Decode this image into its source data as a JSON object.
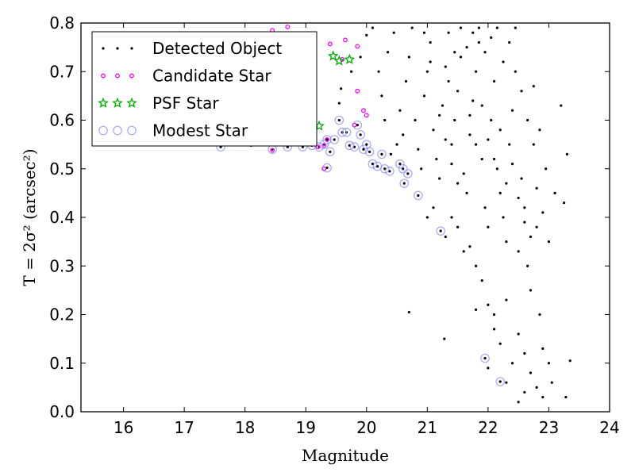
{
  "chart_data": {
    "type": "scatter",
    "xlabel": "Magnitude",
    "ylabel": "T = 2σ² (arcsec²)",
    "xlim": [
      15.3,
      24.0
    ],
    "ylim": [
      0.0,
      0.8
    ],
    "xticks": [
      16,
      17,
      18,
      19,
      20,
      21,
      22,
      23,
      24
    ],
    "yticks": [
      0.0,
      0.1,
      0.2,
      0.3,
      0.4,
      0.5,
      0.6,
      0.7,
      0.8
    ],
    "xtick_labels": [
      "16",
      "17",
      "18",
      "19",
      "20",
      "21",
      "22",
      "23",
      "24"
    ],
    "ytick_labels": [
      "0.0",
      "0.1",
      "0.2",
      "0.3",
      "0.4",
      "0.5",
      "0.6",
      "0.7",
      "0.8"
    ],
    "grid": false,
    "legend_position": "top-left",
    "series": [
      {
        "name": "Detected Object",
        "marker": "dot",
        "color": "#000000",
        "points": [
          [
            17.6,
            0.545
          ],
          [
            18.1,
            0.548
          ],
          [
            18.45,
            0.54
          ],
          [
            18.7,
            0.545
          ],
          [
            18.95,
            0.545
          ],
          [
            19.1,
            0.548
          ],
          [
            19.22,
            0.545
          ],
          [
            19.3,
            0.55
          ],
          [
            19.35,
            0.56
          ],
          [
            19.4,
            0.535
          ],
          [
            19.47,
            0.56
          ],
          [
            19.55,
            0.6
          ],
          [
            19.6,
            0.575
          ],
          [
            19.67,
            0.575
          ],
          [
            19.72,
            0.548
          ],
          [
            19.8,
            0.545
          ],
          [
            19.85,
            0.59
          ],
          [
            19.9,
            0.57
          ],
          [
            19.95,
            0.54
          ],
          [
            20.0,
            0.55
          ],
          [
            20.05,
            0.535
          ],
          [
            20.1,
            0.51
          ],
          [
            20.18,
            0.505
          ],
          [
            20.25,
            0.53
          ],
          [
            20.3,
            0.5
          ],
          [
            20.38,
            0.495
          ],
          [
            20.4,
            0.53
          ],
          [
            20.55,
            0.51
          ],
          [
            20.6,
            0.5
          ],
          [
            20.62,
            0.47
          ],
          [
            20.68,
            0.49
          ],
          [
            20.85,
            0.445
          ],
          [
            20.7,
            0.205
          ],
          [
            21.22,
            0.372
          ],
          [
            21.28,
            0.15
          ],
          [
            21.95,
            0.11
          ],
          [
            22.2,
            0.062
          ],
          [
            19.35,
            0.502
          ],
          [
            19.55,
            0.635
          ],
          [
            19.58,
            0.665
          ],
          [
            19.75,
            0.7
          ],
          [
            19.9,
            0.73
          ],
          [
            20.0,
            0.775
          ],
          [
            20.1,
            0.79
          ],
          [
            20.2,
            0.7
          ],
          [
            20.25,
            0.65
          ],
          [
            20.3,
            0.6
          ],
          [
            20.35,
            0.74
          ],
          [
            20.45,
            0.78
          ],
          [
            20.5,
            0.55
          ],
          [
            20.55,
            0.62
          ],
          [
            20.6,
            0.57
          ],
          [
            20.65,
            0.68
          ],
          [
            20.7,
            0.73
          ],
          [
            20.75,
            0.79
          ],
          [
            20.8,
            0.6
          ],
          [
            20.85,
            0.54
          ],
          [
            20.9,
            0.5
          ],
          [
            20.95,
            0.65
          ],
          [
            21.0,
            0.7
          ],
          [
            21.05,
            0.76
          ],
          [
            21.1,
            0.58
          ],
          [
            21.15,
            0.52
          ],
          [
            21.2,
            0.48
          ],
          [
            21.25,
            0.63
          ],
          [
            21.3,
            0.71
          ],
          [
            21.35,
            0.78
          ],
          [
            21.4,
            0.55
          ],
          [
            21.45,
            0.6
          ],
          [
            21.5,
            0.66
          ],
          [
            21.55,
            0.73
          ],
          [
            21.6,
            0.49
          ],
          [
            21.65,
            0.45
          ],
          [
            21.7,
            0.57
          ],
          [
            21.75,
            0.64
          ],
          [
            21.8,
            0.7
          ],
          [
            21.85,
            0.76
          ],
          [
            21.9,
            0.52
          ],
          [
            21.95,
            0.42
          ],
          [
            22.0,
            0.38
          ],
          [
            22.05,
            0.6
          ],
          [
            22.1,
            0.68
          ],
          [
            22.15,
            0.5
          ],
          [
            22.2,
            0.45
          ],
          [
            22.25,
            0.4
          ],
          [
            22.3,
            0.35
          ],
          [
            22.35,
            0.55
          ],
          [
            22.4,
            0.62
          ],
          [
            22.45,
            0.7
          ],
          [
            22.5,
            0.33
          ],
          [
            22.55,
            0.48
          ],
          [
            22.6,
            0.42
          ],
          [
            22.65,
            0.3
          ],
          [
            22.7,
            0.25
          ],
          [
            22.75,
            0.55
          ],
          [
            22.8,
            0.38
          ],
          [
            22.85,
            0.2
          ],
          [
            22.9,
            0.13
          ],
          [
            22.95,
            0.5
          ],
          [
            23.0,
            0.1
          ],
          [
            23.05,
            0.06
          ],
          [
            23.1,
            0.45
          ],
          [
            23.2,
            0.63
          ],
          [
            23.25,
            0.43
          ],
          [
            23.3,
            0.53
          ],
          [
            23.35,
            0.105
          ],
          [
            23.28,
            0.03
          ],
          [
            21.0,
            0.4
          ],
          [
            21.1,
            0.42
          ],
          [
            21.3,
            0.36
          ],
          [
            21.4,
            0.4
          ],
          [
            21.5,
            0.38
          ],
          [
            21.6,
            0.33
          ],
          [
            21.7,
            0.34
          ],
          [
            21.8,
            0.3
          ],
          [
            21.9,
            0.27
          ],
          [
            22.0,
            0.22
          ],
          [
            22.1,
            0.2
          ],
          [
            22.1,
            0.17
          ],
          [
            22.2,
            0.14
          ],
          [
            22.3,
            0.23
          ],
          [
            22.4,
            0.1
          ],
          [
            22.5,
            0.16
          ],
          [
            22.6,
            0.12
          ],
          [
            22.7,
            0.08
          ],
          [
            22.8,
            0.05
          ],
          [
            22.6,
            0.04
          ],
          [
            22.5,
            0.02
          ],
          [
            22.9,
            0.03
          ],
          [
            22.3,
            0.06
          ],
          [
            22.0,
            0.09
          ],
          [
            21.8,
            0.21
          ],
          [
            20.95,
            0.78
          ],
          [
            21.05,
            0.72
          ],
          [
            21.35,
            0.68
          ],
          [
            21.45,
            0.74
          ],
          [
            21.55,
            0.79
          ],
          [
            21.65,
            0.75
          ],
          [
            21.75,
            0.78
          ],
          [
            21.85,
            0.79
          ],
          [
            21.95,
            0.74
          ],
          [
            22.05,
            0.77
          ],
          [
            22.15,
            0.79
          ],
          [
            22.25,
            0.72
          ],
          [
            22.35,
            0.76
          ],
          [
            22.45,
            0.79
          ],
          [
            22.55,
            0.66
          ],
          [
            22.65,
            0.6
          ],
          [
            22.75,
            0.67
          ],
          [
            22.85,
            0.58
          ],
          [
            21.2,
            0.61
          ],
          [
            21.3,
            0.56
          ],
          [
            21.4,
            0.51
          ],
          [
            21.5,
            0.47
          ],
          [
            21.7,
            0.61
          ],
          [
            21.8,
            0.55
          ],
          [
            21.9,
            0.63
          ],
          [
            22.0,
            0.56
          ],
          [
            22.1,
            0.52
          ],
          [
            22.2,
            0.58
          ],
          [
            22.3,
            0.47
          ],
          [
            22.4,
            0.51
          ],
          [
            22.5,
            0.44
          ],
          [
            22.6,
            0.39
          ],
          [
            22.7,
            0.36
          ],
          [
            22.8,
            0.46
          ],
          [
            22.9,
            0.41
          ],
          [
            23.0,
            0.35
          ]
        ]
      },
      {
        "name": "Candidate Star",
        "marker": "small-circle",
        "color": "#ff00ff",
        "points": [
          [
            18.45,
            0.785
          ],
          [
            18.7,
            0.792
          ],
          [
            19.4,
            0.757
          ],
          [
            19.6,
            0.725
          ],
          [
            19.65,
            0.765
          ],
          [
            19.85,
            0.752
          ],
          [
            19.85,
            0.66
          ],
          [
            19.95,
            0.62
          ],
          [
            20.0,
            0.61
          ],
          [
            19.2,
            0.545
          ],
          [
            19.3,
            0.548
          ],
          [
            19.35,
            0.56
          ],
          [
            19.8,
            0.59
          ],
          [
            18.45,
            0.538
          ],
          [
            19.3,
            0.5
          ]
        ]
      },
      {
        "name": "PSF Star",
        "marker": "star",
        "color": "#00aa00",
        "points": [
          [
            19.22,
            0.588
          ],
          [
            19.45,
            0.732
          ],
          [
            19.55,
            0.722
          ],
          [
            19.72,
            0.725
          ]
        ]
      },
      {
        "name": "Modest Star",
        "marker": "large-circle",
        "color": "#8888ff",
        "points": [
          [
            17.6,
            0.545
          ],
          [
            18.45,
            0.54
          ],
          [
            18.7,
            0.545
          ],
          [
            18.95,
            0.545
          ],
          [
            19.1,
            0.548
          ],
          [
            19.22,
            0.545
          ],
          [
            19.3,
            0.55
          ],
          [
            19.35,
            0.56
          ],
          [
            19.4,
            0.535
          ],
          [
            19.47,
            0.56
          ],
          [
            19.55,
            0.6
          ],
          [
            19.6,
            0.575
          ],
          [
            19.67,
            0.575
          ],
          [
            19.72,
            0.548
          ],
          [
            19.8,
            0.545
          ],
          [
            19.85,
            0.59
          ],
          [
            19.9,
            0.57
          ],
          [
            19.95,
            0.54
          ],
          [
            20.0,
            0.55
          ],
          [
            20.05,
            0.535
          ],
          [
            20.1,
            0.51
          ],
          [
            20.18,
            0.505
          ],
          [
            20.25,
            0.53
          ],
          [
            20.3,
            0.5
          ],
          [
            20.38,
            0.495
          ],
          [
            20.55,
            0.51
          ],
          [
            20.6,
            0.5
          ],
          [
            20.62,
            0.47
          ],
          [
            20.68,
            0.49
          ],
          [
            20.85,
            0.445
          ],
          [
            21.22,
            0.372
          ],
          [
            21.95,
            0.11
          ],
          [
            22.2,
            0.062
          ],
          [
            19.35,
            0.502
          ]
        ]
      }
    ]
  }
}
